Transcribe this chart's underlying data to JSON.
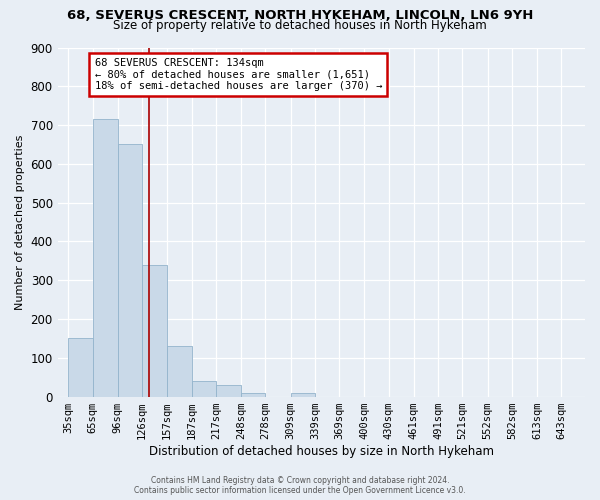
{
  "title1": "68, SEVERUS CRESCENT, NORTH HYKEHAM, LINCOLN, LN6 9YH",
  "title2": "Size of property relative to detached houses in North Hykeham",
  "xlabel": "Distribution of detached houses by size in North Hykeham",
  "ylabel": "Number of detached properties",
  "bar_labels": [
    "35sqm",
    "65sqm",
    "96sqm",
    "126sqm",
    "157sqm",
    "187sqm",
    "217sqm",
    "248sqm",
    "278sqm",
    "309sqm",
    "339sqm",
    "369sqm",
    "400sqm",
    "430sqm",
    "461sqm",
    "491sqm",
    "521sqm",
    "552sqm",
    "582sqm",
    "613sqm",
    "643sqm"
  ],
  "bar_values": [
    150,
    715,
    650,
    340,
    130,
    40,
    30,
    10,
    0,
    10,
    0,
    0,
    0,
    0,
    0,
    0,
    0,
    0,
    0,
    0,
    0
  ],
  "bar_positions": [
    35,
    65,
    96,
    126,
    157,
    187,
    217,
    248,
    278,
    309,
    339,
    369,
    400,
    430,
    461,
    491,
    521,
    552,
    582,
    613,
    643
  ],
  "bar_color": "#c9d9e8",
  "bar_edge_color": "#93b4cc",
  "property_x": 134,
  "annotation_line1": "68 SEVERUS CRESCENT: 134sqm",
  "annotation_line2": "← 80% of detached houses are smaller (1,651)",
  "annotation_line3": "18% of semi-detached houses are larger (370) →",
  "red_line_color": "#aa0000",
  "annotation_box_color": "#ffffff",
  "annotation_box_edge": "#cc0000",
  "ylim": [
    0,
    900
  ],
  "xlim_left": 22,
  "xlim_right": 672,
  "background_color": "#e8eef5",
  "footer_text": "Contains HM Land Registry data © Crown copyright and database right 2024.\nContains public sector information licensed under the Open Government Licence v3.0.",
  "yticks": [
    0,
    100,
    200,
    300,
    400,
    500,
    600,
    700,
    800,
    900
  ],
  "title1_fontsize": 9.5,
  "title2_fontsize": 8.5,
  "xlabel_fontsize": 8.5,
  "ylabel_fontsize": 8.0,
  "tick_fontsize": 7.5,
  "ann_fontsize": 7.5
}
